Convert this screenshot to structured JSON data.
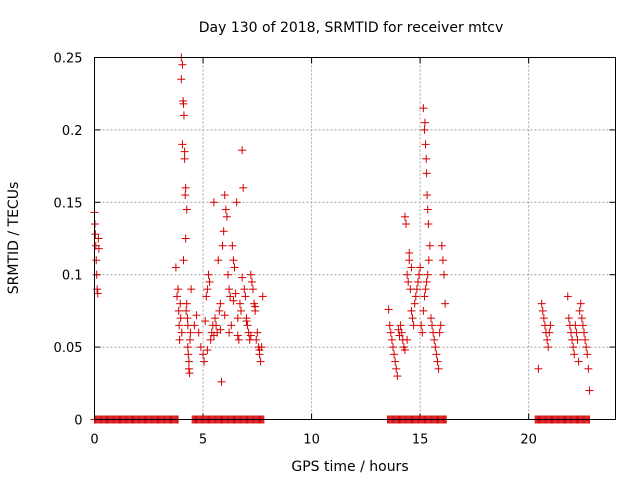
{
  "chart_data": {
    "type": "scatter",
    "title": "Day 130 of 2018, SRMTID for receiver mtcv",
    "xlabel": "GPS time / hours",
    "ylabel": "SRMTID / TECUs",
    "xlim": [
      0,
      24
    ],
    "ylim": [
      0,
      0.25
    ],
    "xticks": [
      0,
      5,
      10,
      15,
      20
    ],
    "xtick_labels": [
      "0",
      "5",
      "10",
      "15",
      "20"
    ],
    "yticks": [
      0,
      0.05,
      0.1,
      0.15,
      0.2,
      0.25
    ],
    "ytick_labels": [
      "0",
      "0.05",
      "0.1",
      "0.15",
      "0.2",
      "0.25"
    ],
    "grid": true,
    "marker": "plus",
    "color": "#d40000",
    "zero_segments": [
      [
        0.0,
        3.85
      ],
      [
        4.5,
        7.8
      ],
      [
        13.5,
        16.2
      ],
      [
        20.3,
        22.8
      ]
    ],
    "series": [
      {
        "name": "SRMTID",
        "x": [
          0.0,
          0.02,
          0.04,
          0.06,
          0.08,
          0.1,
          0.12,
          0.15,
          0.18,
          0.2,
          3.75,
          3.8,
          3.85,
          3.88,
          3.9,
          3.92,
          3.95,
          3.97,
          4.0,
          4.0,
          4.02,
          4.05,
          4.05,
          4.08,
          4.1,
          4.1,
          4.12,
          4.15,
          4.15,
          4.18,
          4.2,
          4.2,
          4.22,
          4.25,
          4.25,
          4.28,
          4.3,
          4.3,
          4.32,
          4.35,
          4.35,
          4.38,
          4.4,
          4.42,
          4.45,
          4.6,
          4.7,
          4.8,
          4.9,
          5.0,
          5.05,
          5.1,
          5.15,
          5.2,
          5.25,
          5.3,
          5.35,
          5.4,
          5.45,
          5.5,
          5.55,
          5.6,
          5.65,
          5.7,
          5.75,
          5.8,
          5.85,
          5.9,
          5.95,
          6.0,
          6.05,
          6.1,
          6.15,
          6.2,
          6.25,
          6.3,
          6.35,
          6.4,
          6.45,
          6.5,
          6.55,
          6.6,
          6.65,
          6.7,
          6.75,
          6.8,
          6.85,
          6.9,
          6.95,
          7.0,
          7.05,
          7.1,
          7.15,
          7.2,
          7.25,
          7.3,
          7.35,
          7.4,
          7.45,
          7.5,
          7.55,
          7.6,
          7.65,
          7.7,
          7.75,
          5.2,
          5.5,
          5.8,
          6.0,
          6.2,
          6.4,
          6.6,
          6.8,
          7.0,
          7.2,
          7.4,
          7.6,
          13.55,
          13.6,
          13.65,
          13.7,
          13.75,
          13.8,
          13.85,
          13.9,
          13.95,
          14.0,
          14.05,
          14.1,
          14.15,
          14.2,
          14.25,
          14.3,
          14.35,
          14.4,
          14.45,
          14.5,
          14.55,
          14.6,
          14.65,
          14.7,
          14.75,
          14.8,
          14.85,
          14.9,
          14.95,
          15.0,
          15.05,
          15.1,
          15.15,
          15.2,
          15.25,
          15.3,
          15.35,
          15.4,
          15.45,
          15.5,
          15.55,
          15.6,
          15.65,
          15.7,
          15.75,
          15.8,
          15.85,
          15.9,
          15.95,
          16.0,
          16.05,
          16.1,
          16.15,
          15.15,
          15.2,
          15.22,
          15.25,
          15.28,
          15.3,
          15.32,
          15.35,
          15.38,
          14.5,
          14.6,
          14.3,
          14.4,
          20.45,
          20.6,
          20.65,
          20.7,
          20.75,
          20.8,
          20.85,
          20.9,
          20.95,
          21.0,
          21.8,
          21.85,
          21.9,
          21.95,
          22.0,
          22.05,
          22.1,
          22.15,
          22.2,
          22.25,
          22.3,
          22.35,
          22.4,
          22.45,
          22.5,
          22.55,
          22.6,
          22.65,
          22.7,
          22.75,
          22.8
        ],
        "y": [
          0.143,
          0.135,
          0.128,
          0.12,
          0.11,
          0.1,
          0.09,
          0.087,
          0.125,
          0.118,
          0.105,
          0.085,
          0.09,
          0.075,
          0.065,
          0.055,
          0.08,
          0.07,
          0.25,
          0.235,
          0.06,
          0.245,
          0.19,
          0.22,
          0.218,
          0.11,
          0.21,
          0.18,
          0.185,
          0.155,
          0.16,
          0.125,
          0.075,
          0.145,
          0.08,
          0.07,
          0.065,
          0.05,
          0.045,
          0.04,
          0.035,
          0.032,
          0.055,
          0.06,
          0.09,
          0.065,
          0.072,
          0.06,
          0.05,
          0.045,
          0.04,
          0.068,
          0.085,
          0.09,
          0.1,
          0.095,
          0.055,
          0.06,
          0.065,
          0.15,
          0.07,
          0.065,
          0.06,
          0.11,
          0.075,
          0.08,
          0.026,
          0.12,
          0.13,
          0.155,
          0.145,
          0.14,
          0.1,
          0.09,
          0.085,
          0.065,
          0.12,
          0.11,
          0.105,
          0.087,
          0.15,
          0.07,
          0.055,
          0.08,
          0.075,
          0.186,
          0.16,
          0.09,
          0.085,
          0.07,
          0.065,
          0.06,
          0.055,
          0.1,
          0.095,
          0.09,
          0.08,
          0.075,
          0.055,
          0.06,
          0.05,
          0.045,
          0.04,
          0.05,
          0.085,
          0.048,
          0.058,
          0.062,
          0.072,
          0.06,
          0.082,
          0.058,
          0.098,
          0.068,
          0.058,
          0.078,
          0.048,
          0.076,
          0.065,
          0.06,
          0.055,
          0.05,
          0.045,
          0.04,
          0.035,
          0.03,
          0.062,
          0.058,
          0.065,
          0.06,
          0.055,
          0.05,
          0.14,
          0.135,
          0.1,
          0.095,
          0.11,
          0.09,
          0.075,
          0.07,
          0.065,
          0.08,
          0.085,
          0.09,
          0.095,
          0.1,
          0.105,
          0.065,
          0.06,
          0.075,
          0.085,
          0.09,
          0.095,
          0.1,
          0.11,
          0.12,
          0.07,
          0.065,
          0.06,
          0.055,
          0.05,
          0.045,
          0.04,
          0.035,
          0.06,
          0.065,
          0.12,
          0.11,
          0.1,
          0.08,
          0.215,
          0.2,
          0.205,
          0.19,
          0.18,
          0.17,
          0.155,
          0.145,
          0.135,
          0.115,
          0.105,
          0.048,
          0.055,
          0.035,
          0.08,
          0.075,
          0.07,
          0.065,
          0.06,
          0.055,
          0.05,
          0.06,
          0.065,
          0.085,
          0.07,
          0.065,
          0.06,
          0.055,
          0.05,
          0.045,
          0.065,
          0.06,
          0.055,
          0.04,
          0.075,
          0.08,
          0.07,
          0.065,
          0.06,
          0.055,
          0.05,
          0.045,
          0.035,
          0.02
        ]
      }
    ]
  }
}
